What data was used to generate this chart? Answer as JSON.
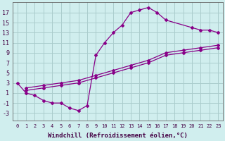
{
  "background_color": "#d0eeee",
  "grid_color": "#aacccc",
  "line_color": "#880088",
  "marker": "D",
  "markersize": 2.0,
  "linewidth": 0.9,
  "xlabel": "Windchill (Refroidissement éolien,°C)",
  "xlabel_fontsize": 6.5,
  "ylabel_ticks": [
    -3,
    -1,
    1,
    3,
    5,
    7,
    9,
    11,
    13,
    15,
    17
  ],
  "xlim": [
    -0.5,
    23.5
  ],
  "ylim": [
    -4.5,
    19
  ],
  "curve_loop_x": [
    0,
    1,
    2,
    3,
    4,
    5,
    6,
    7,
    8,
    9,
    10,
    11,
    12,
    13,
    14,
    15,
    16,
    17,
    20,
    21,
    22,
    23
  ],
  "curve_loop_y": [
    3,
    1,
    0.5,
    -0.5,
    -1,
    -1,
    -2,
    -2.5,
    -1.5,
    8.5,
    11,
    13,
    14.5,
    17,
    17.5,
    18,
    17,
    15.5,
    14,
    13.5,
    13.5,
    13
  ],
  "curve_diag1_x": [
    1,
    3,
    5,
    7,
    9,
    11,
    13,
    15,
    17,
    19,
    21,
    23
  ],
  "curve_diag1_y": [
    2,
    2.5,
    3,
    3.5,
    4.5,
    5.5,
    6.5,
    7.5,
    9,
    9.5,
    10,
    10.5
  ],
  "curve_diag2_x": [
    1,
    3,
    5,
    7,
    9,
    11,
    13,
    15,
    17,
    19,
    21,
    23
  ],
  "curve_diag2_y": [
    1.5,
    2,
    2.5,
    3,
    4,
    5,
    6,
    7,
    8.5,
    9,
    9.5,
    10
  ],
  "xtick_fontsize": 5.0,
  "ytick_fontsize": 6.0
}
